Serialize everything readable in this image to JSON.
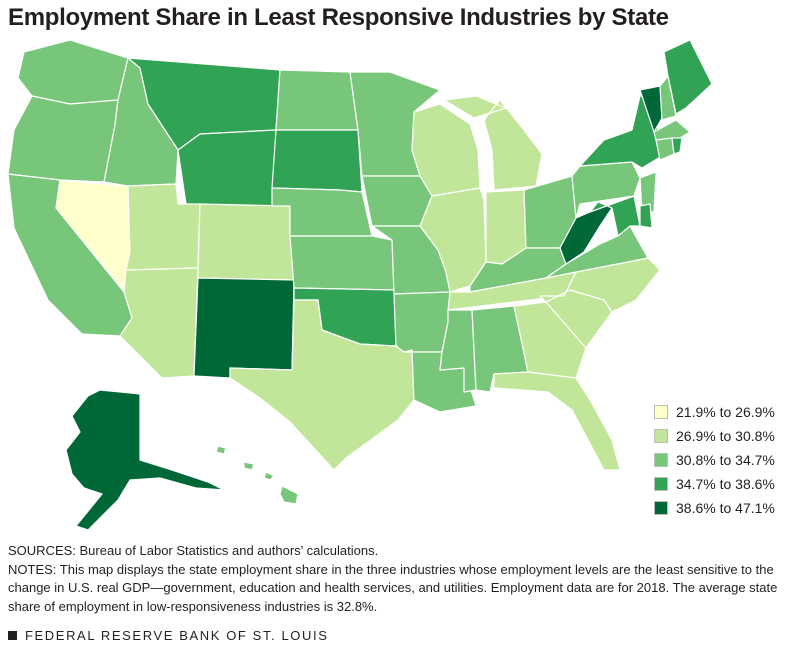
{
  "title": "Employment Share in Least Responsive Industries by State",
  "legend": [
    {
      "label": "21.9% to 26.9%",
      "color": "#ffffcc"
    },
    {
      "label": "26.9% to 30.8%",
      "color": "#c2e699"
    },
    {
      "label": "30.8% to 34.7%",
      "color": "#78c679"
    },
    {
      "label": "34.7% to 38.6%",
      "color": "#31a354"
    },
    {
      "label": "38.6% to 47.1%",
      "color": "#006837"
    }
  ],
  "states": [
    {
      "abbr": "WA",
      "class": 3
    },
    {
      "abbr": "OR",
      "class": 3
    },
    {
      "abbr": "CA",
      "class": 3
    },
    {
      "abbr": "NV",
      "class": 1
    },
    {
      "abbr": "ID",
      "class": 3
    },
    {
      "abbr": "MT",
      "class": 4
    },
    {
      "abbr": "WY",
      "class": 4
    },
    {
      "abbr": "UT",
      "class": 2
    },
    {
      "abbr": "AZ",
      "class": 2
    },
    {
      "abbr": "CO",
      "class": 2
    },
    {
      "abbr": "NM",
      "class": 5
    },
    {
      "abbr": "ND",
      "class": 3
    },
    {
      "abbr": "SD",
      "class": 4
    },
    {
      "abbr": "NE",
      "class": 3
    },
    {
      "abbr": "KS",
      "class": 3
    },
    {
      "abbr": "OK",
      "class": 4
    },
    {
      "abbr": "TX",
      "class": 2
    },
    {
      "abbr": "MN",
      "class": 3
    },
    {
      "abbr": "IA",
      "class": 3
    },
    {
      "abbr": "MO",
      "class": 3
    },
    {
      "abbr": "AR",
      "class": 3
    },
    {
      "abbr": "LA",
      "class": 3
    },
    {
      "abbr": "WI",
      "class": 2
    },
    {
      "abbr": "IL",
      "class": 2
    },
    {
      "abbr": "MI",
      "class": 2
    },
    {
      "abbr": "IN",
      "class": 2
    },
    {
      "abbr": "OH",
      "class": 3
    },
    {
      "abbr": "KY",
      "class": 3
    },
    {
      "abbr": "TN",
      "class": 2
    },
    {
      "abbr": "MS",
      "class": 3
    },
    {
      "abbr": "AL",
      "class": 3
    },
    {
      "abbr": "GA",
      "class": 2
    },
    {
      "abbr": "FL",
      "class": 2
    },
    {
      "abbr": "SC",
      "class": 2
    },
    {
      "abbr": "NC",
      "class": 2
    },
    {
      "abbr": "VA",
      "class": 3
    },
    {
      "abbr": "WV",
      "class": 5
    },
    {
      "abbr": "PA",
      "class": 3
    },
    {
      "abbr": "NY",
      "class": 4
    },
    {
      "abbr": "VT",
      "class": 5
    },
    {
      "abbr": "NH",
      "class": 3
    },
    {
      "abbr": "ME",
      "class": 4
    },
    {
      "abbr": "MA",
      "class": 3
    },
    {
      "abbr": "CT",
      "class": 3
    },
    {
      "abbr": "RI",
      "class": 4
    },
    {
      "abbr": "NJ",
      "class": 3
    },
    {
      "abbr": "DE",
      "class": 4
    },
    {
      "abbr": "MD",
      "class": 4
    },
    {
      "abbr": "AK",
      "class": 5
    },
    {
      "abbr": "HI",
      "class": 3
    }
  ],
  "notes": {
    "sources": "SOURCES: Bureau of Labor Statistics and authors’ calculations.",
    "notes": "NOTES: This map displays the state employment share in the three industries whose employment levels are the least sensitive to the change in U.S. real GDP—government, education and health services, and utilities. Employment data are for 2018. The average state share of employment in low-responsiveness industries is 32.8%."
  },
  "footer": "FEDERAL RESERVE BANK OF ST. LOUIS"
}
